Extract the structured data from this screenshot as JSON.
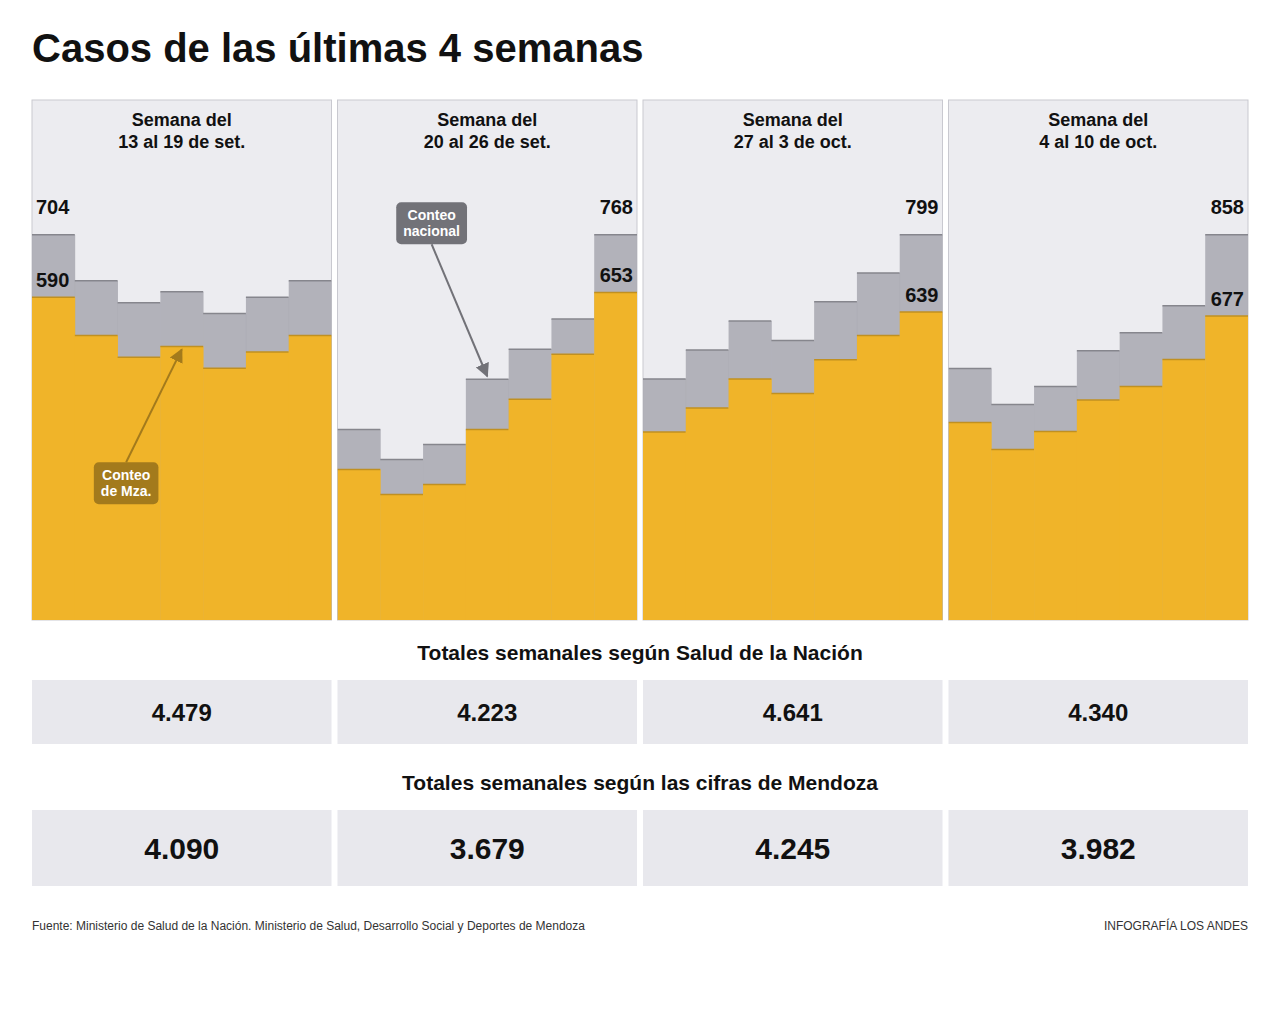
{
  "title": "Casos de las últimas 4 semanas",
  "chart_data": [
    {
      "type": "step",
      "title": "Semana del\n13 al 19 de set.",
      "categories": [
        null,
        null,
        null,
        null,
        null,
        null,
        null
      ],
      "series": [
        {
          "color": "#a8a8b0",
          "values": [
            704,
            620,
            580,
            600,
            560,
            590,
            620
          ],
          "value_labels": [
            "704",
            null,
            null,
            null,
            null,
            null,
            null
          ]
        },
        {
          "name": "Conteo\nde Mza.",
          "color": "#f0b429",
          "values": [
            590,
            520,
            480,
            500,
            460,
            490,
            520
          ],
          "value_labels": [
            "590",
            null,
            null,
            null,
            null,
            null,
            null
          ]
        }
      ],
      "ylim": [
        0,
        950.4
      ],
      "data_labels": true,
      "tick_labels": false,
      "grid": false
    },
    {
      "type": "step",
      "title": "Semana del\n20 al 26 de set.",
      "categories": [
        null,
        null,
        null,
        null,
        null,
        null,
        null
      ],
      "series": [
        {
          "name": "Conteo\nnacional",
          "color": "#a8a8b0",
          "values": [
            380,
            320,
            350,
            480,
            540,
            600,
            768
          ],
          "value_labels": [
            null,
            null,
            null,
            null,
            null,
            null,
            "768"
          ]
        },
        {
          "color": "#f0b429",
          "values": [
            300,
            250,
            270,
            380,
            440,
            530,
            653
          ],
          "value_labels": [
            null,
            null,
            null,
            null,
            null,
            null,
            "653"
          ]
        }
      ],
      "ylim": [
        0,
        1036.8
      ],
      "data_labels": true,
      "tick_labels": false,
      "grid": false
    },
    {
      "type": "step",
      "title": "Semana del\n27 al 3 de oct.",
      "categories": [
        null,
        null,
        null,
        null,
        null,
        null,
        null
      ],
      "series": [
        {
          "color": "#a8a8b0",
          "values": [
            500,
            560,
            620,
            580,
            660,
            720,
            799
          ],
          "value_labels": [
            null,
            null,
            null,
            null,
            null,
            null,
            "799"
          ]
        },
        {
          "color": "#f0b429",
          "values": [
            390,
            440,
            500,
            470,
            540,
            590,
            639
          ],
          "value_labels": [
            null,
            null,
            null,
            null,
            null,
            null,
            "639"
          ]
        }
      ],
      "ylim": [
        0,
        1078.65
      ],
      "data_labels": true,
      "tick_labels": false,
      "grid": false
    },
    {
      "type": "step",
      "title": "Semana del\n4 al 10 de oct.",
      "categories": [
        null,
        null,
        null,
        null,
        null,
        null,
        null
      ],
      "series": [
        {
          "color": "#a8a8b0",
          "values": [
            560,
            480,
            520,
            600,
            640,
            700,
            858
          ],
          "value_labels": [
            null,
            null,
            null,
            null,
            null,
            null,
            "858"
          ]
        },
        {
          "color": "#f0b429",
          "values": [
            440,
            380,
            420,
            490,
            520,
            580,
            677
          ],
          "value_labels": [
            null,
            null,
            null,
            null,
            null,
            null,
            "677"
          ]
        }
      ],
      "ylim": [
        0,
        1158.3
      ],
      "data_labels": true,
      "tick_labels": false,
      "grid": false
    }
  ],
  "totals": [
    {
      "title": "Totales semanales según Salud de la Nación",
      "values": [
        4479,
        4223,
        4641,
        4340
      ],
      "value_labels": [
        "4.479",
        "4.223",
        "4.641",
        "4.340"
      ]
    },
    {
      "title": "Totales semanales según las cifras de Mendoza",
      "values": [
        4090,
        3679,
        4245,
        3982
      ],
      "value_labels": [
        "4.090",
        "3.679",
        "4.245",
        "3.982"
      ]
    }
  ],
  "source": "Fuente: Ministerio de Salud de la Nación. Ministerio de Salud, Desarrollo Social y Deportes de Mendoza",
  "credit": "INFOGRAFÍA LOS ANDES"
}
